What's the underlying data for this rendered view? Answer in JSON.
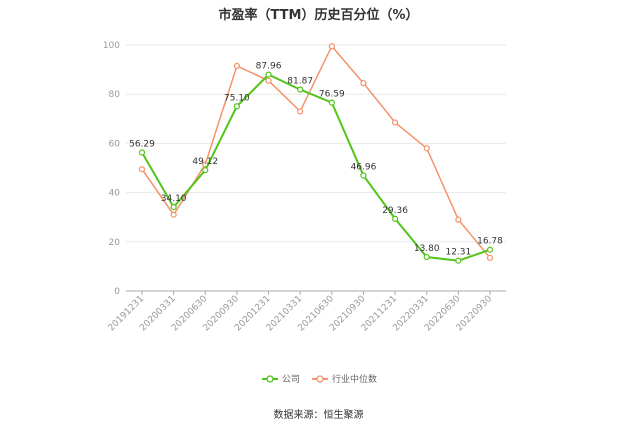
{
  "chart_data": {
    "type": "line",
    "title": "市盈率（TTM）历史百分位（%）",
    "categories": [
      "20191231",
      "20200331",
      "20200630",
      "20200930",
      "20201231",
      "20210331",
      "20210630",
      "20210930",
      "20211231",
      "20220331",
      "20220630",
      "20220930"
    ],
    "ylim": [
      0,
      100
    ],
    "yticks": [
      0,
      20,
      40,
      60,
      80,
      100
    ],
    "grid": true,
    "legend_position": "bottom",
    "series": [
      {
        "name": "公司",
        "color": "#52c41a",
        "values": [
          56.29,
          34.1,
          49.12,
          75.1,
          87.96,
          81.87,
          76.59,
          46.96,
          29.36,
          13.8,
          12.31,
          16.78
        ],
        "labels": [
          "56.29",
          "34.10",
          "49.12",
          "75.10",
          "87.96",
          "81.87",
          "76.59",
          "46.96",
          "29.36",
          "13.80",
          "12.31",
          "16.78"
        ]
      },
      {
        "name": "行业中位数",
        "color": "#f4926a",
        "values": [
          49.5,
          31.0,
          51.5,
          91.5,
          85.5,
          73.0,
          99.5,
          84.5,
          68.5,
          58.0,
          29.0,
          13.5
        ]
      }
    ]
  },
  "source": "数据来源：恒生聚源"
}
